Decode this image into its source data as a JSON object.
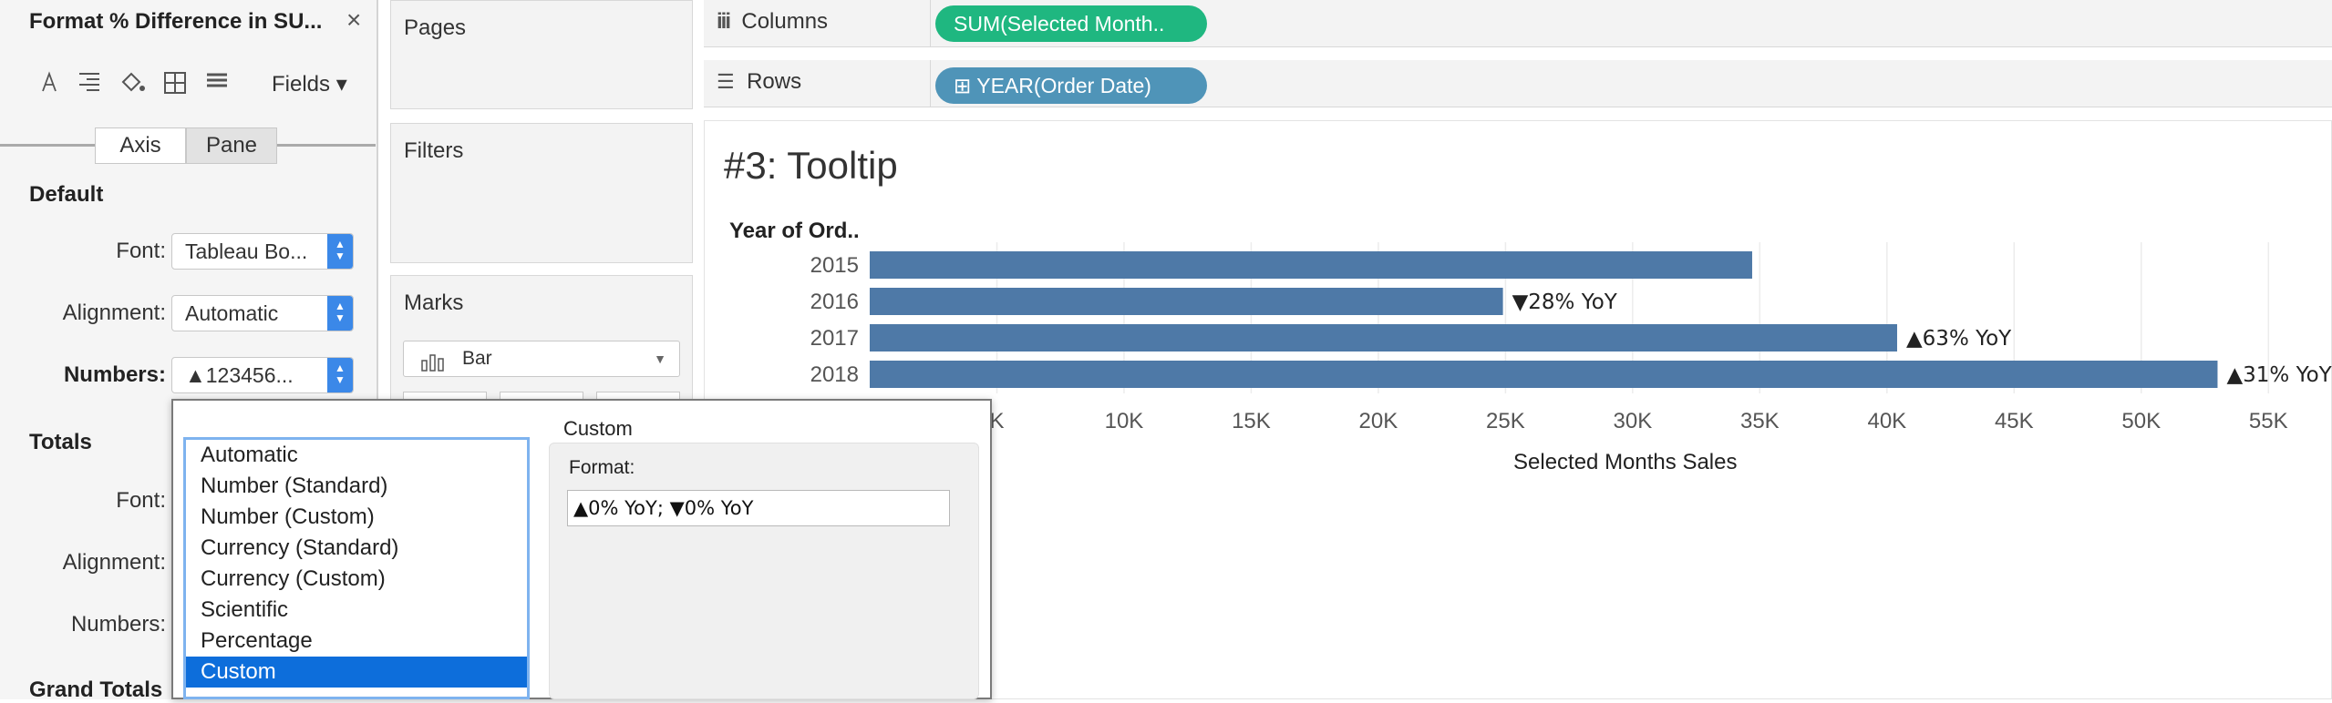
{
  "format_pane": {
    "title": "Format % Difference in SU...",
    "close_glyph": "×",
    "fields_label": "Fields ▾",
    "tabs": [
      "Axis",
      "Pane"
    ],
    "default_section": "Default",
    "totals_section": "Totals",
    "grand_totals_section": "Grand Totals",
    "font_label": "Font:",
    "alignment_label": "Alignment:",
    "numbers_label": "Numbers:",
    "default_font_value": "Tableau Bo...",
    "default_alignment_value": "Automatic",
    "default_numbers_value": "▲123456...",
    "toolbar_icons": [
      "font-icon",
      "align-icon",
      "shading-icon",
      "borders-icon",
      "lines-icon"
    ]
  },
  "shelves": {
    "pages": "Pages",
    "filters": "Filters",
    "marks": "Marks",
    "marks_type": "Bar",
    "columns_label": "Columns",
    "rows_label": "Rows",
    "columns_pill": "SUM(Selected Month..",
    "rows_pill": "⊞  YEAR(Order Date)"
  },
  "view": {
    "title": "#3: Tooltip"
  },
  "chart_data": {
    "type": "bar",
    "orientation": "horizontal",
    "row_header": "Year of Ord..",
    "categories": [
      "2015",
      "2016",
      "2017",
      "2018"
    ],
    "values": [
      34700,
      24900,
      40400,
      53000
    ],
    "data_labels": [
      "",
      "▼28% YoY",
      "▲63% YoY",
      "▲31% YoY"
    ],
    "xlabel": "Selected Months Sales",
    "xticks": [
      "K",
      "10K",
      "15K",
      "20K",
      "25K",
      "30K",
      "35K",
      "40K",
      "45K",
      "50K",
      "55K"
    ],
    "xtick_values": [
      5000,
      10000,
      15000,
      20000,
      25000,
      30000,
      35000,
      40000,
      45000,
      50000,
      55000
    ],
    "xlim": [
      0,
      57500
    ],
    "grid": "vertical",
    "bar_color": "#4e79a7"
  },
  "number_format_popup": {
    "options": [
      "Automatic",
      "Number (Standard)",
      "Number (Custom)",
      "Currency (Standard)",
      "Currency (Custom)",
      "Scientific",
      "Percentage",
      "Custom"
    ],
    "selected": "Custom",
    "panel_title": "Custom",
    "format_label": "Format:",
    "format_value": "▲0% YoY; ▼0% YoY"
  },
  "colors": {
    "columns_pill": "#1fb780",
    "rows_pill": "#4f94b8",
    "selection": "#0d6edb"
  }
}
